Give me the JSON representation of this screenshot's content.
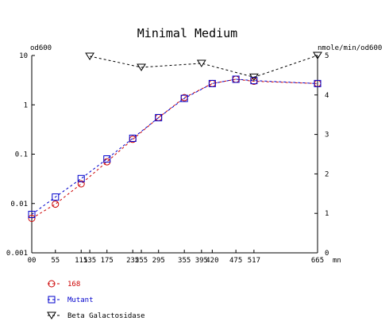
{
  "chart_data": {
    "type": "line",
    "title": "Minimal Medium",
    "xlabel": "mn",
    "ylabel_left": "od600",
    "ylabel_right": "nmole/min/od600",
    "xlim": [
      0,
      665
    ],
    "ylim_left": [
      0.001,
      10
    ],
    "yscale_left": "log",
    "ylim_right": [
      0,
      5
    ],
    "x_ticks": [
      0,
      55,
      115,
      135,
      175,
      235,
      255,
      295,
      355,
      395,
      420,
      475,
      517,
      665
    ],
    "x_tick_labels": [
      "00",
      "55",
      "115",
      "135",
      "175",
      "235",
      "255",
      "295",
      "355",
      "395",
      "420",
      "475",
      "517",
      "665"
    ],
    "y_left_ticks": [
      0.001,
      0.01,
      0.1,
      1,
      10
    ],
    "y_left_tick_labels": [
      "0.001",
      "0.01",
      "0.1",
      "1",
      "10"
    ],
    "y_right_ticks": [
      0,
      1,
      2,
      3,
      4,
      5
    ],
    "y_right_tick_labels": [
      "0",
      "1",
      "2",
      "3",
      "4",
      "5"
    ],
    "grid": false,
    "legend_position": "bottom-left",
    "series": [
      {
        "name": "168",
        "axis": "left",
        "marker": "circle",
        "color": "#cc0000",
        "x": [
          0,
          55,
          115,
          175,
          235,
          295,
          355,
          420,
          475,
          517,
          665
        ],
        "values": [
          0.005,
          0.0097,
          0.025,
          0.07,
          0.2,
          0.55,
          1.4,
          2.7,
          3.3,
          3.0,
          2.7
        ]
      },
      {
        "name": "Mutant",
        "axis": "left",
        "marker": "square",
        "color": "#0000cc",
        "x": [
          0,
          55,
          115,
          175,
          235,
          295,
          355,
          420,
          475,
          517,
          665
        ],
        "values": [
          0.006,
          0.0135,
          0.032,
          0.08,
          0.21,
          0.55,
          1.35,
          2.7,
          3.3,
          3.1,
          2.7
        ]
      },
      {
        "name": "Beta Galactosidase",
        "axis": "right",
        "marker": "triangle-down",
        "color": "#000000",
        "x": [
          135,
          255,
          395,
          517,
          665
        ],
        "values": [
          4.98,
          4.7,
          4.8,
          4.45,
          5.0
        ]
      }
    ]
  }
}
